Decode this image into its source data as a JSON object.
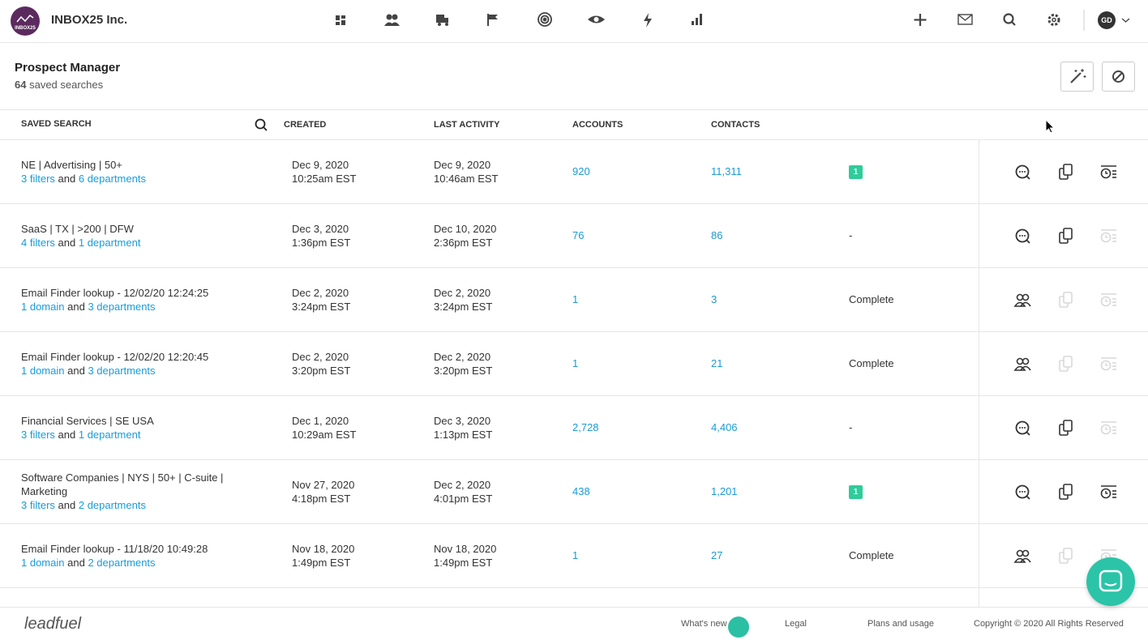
{
  "header": {
    "logo_text": "INBOX25",
    "company": "INBOX25 Inc.",
    "avatar": "GD"
  },
  "page": {
    "title": "Prospect Manager",
    "count": "64",
    "count_label": "saved searches"
  },
  "table": {
    "columns": [
      "SAVED SEARCH",
      "CREATED",
      "LAST ACTIVITY",
      "ACCOUNTS",
      "CONTACTS"
    ],
    "rows": [
      {
        "name": "NE | Advertising | 50+",
        "criteria": {
          "first": "3 filters",
          "joiner": "and",
          "second": "6 departments"
        },
        "created": {
          "date": "Dec 9, 2020",
          "time": "10:25am EST"
        },
        "activity": {
          "date": "Dec 9, 2020",
          "time": "10:46am EST"
        },
        "accounts": "920",
        "contacts": "11,311",
        "status": "1"
      },
      {
        "name": "SaaS | TX | >200 | DFW",
        "criteria": {
          "first": "4 filters",
          "joiner": "and",
          "second": "1 department"
        },
        "created": {
          "date": "Dec 3, 2020",
          "time": "1:36pm EST"
        },
        "activity": {
          "date": "Dec 10, 2020",
          "time": "2:36pm EST"
        },
        "accounts": "76",
        "contacts": "86",
        "status": "-"
      },
      {
        "name": "Email Finder lookup - 12/02/20 12:24:25",
        "criteria": {
          "first": "1 domain",
          "joiner": "and",
          "second": "3 departments"
        },
        "created": {
          "date": "Dec 2, 2020",
          "time": "3:24pm EST"
        },
        "activity": {
          "date": "Dec 2, 2020",
          "time": "3:24pm EST"
        },
        "accounts": "1",
        "contacts": "3",
        "status": "Complete"
      },
      {
        "name": "Email Finder lookup - 12/02/20 12:20:45",
        "criteria": {
          "first": "1 domain",
          "joiner": "and",
          "second": "3 departments"
        },
        "created": {
          "date": "Dec 2, 2020",
          "time": "3:20pm EST"
        },
        "activity": {
          "date": "Dec 2, 2020",
          "time": "3:20pm EST"
        },
        "accounts": "1",
        "contacts": "21",
        "status": "Complete"
      },
      {
        "name": "Financial Services | SE USA",
        "criteria": {
          "first": "3 filters",
          "joiner": "and",
          "second": "1 department"
        },
        "created": {
          "date": "Dec 1, 2020",
          "time": "10:29am EST"
        },
        "activity": {
          "date": "Dec 3, 2020",
          "time": "1:13pm EST"
        },
        "accounts": "2,728",
        "contacts": "4,406",
        "status": "-"
      },
      {
        "name": "Software Companies | NYS | 50+ | C-suite | Marketing",
        "criteria": {
          "first": "3 filters",
          "joiner": "and",
          "second": "2 departments"
        },
        "created": {
          "date": "Nov 27, 2020",
          "time": "4:18pm EST"
        },
        "activity": {
          "date": "Dec 2, 2020",
          "time": "4:01pm EST"
        },
        "accounts": "438",
        "contacts": "1,201",
        "status": "1"
      },
      {
        "name": "Email Finder lookup - 11/18/20 10:49:28",
        "criteria": {
          "first": "1 domain",
          "joiner": "and",
          "second": "2 departments"
        },
        "created": {
          "date": "Nov 18, 2020",
          "time": "1:49pm EST"
        },
        "activity": {
          "date": "Nov 18, 2020",
          "time": "1:49pm EST"
        },
        "accounts": "1",
        "contacts": "27",
        "status": "Complete"
      }
    ]
  },
  "footer": {
    "brand": "leadfuel",
    "links": [
      "What's new",
      "Legal",
      "Plans and usage"
    ],
    "copyright": "Copyright © 2020 All Rights Reserved"
  }
}
